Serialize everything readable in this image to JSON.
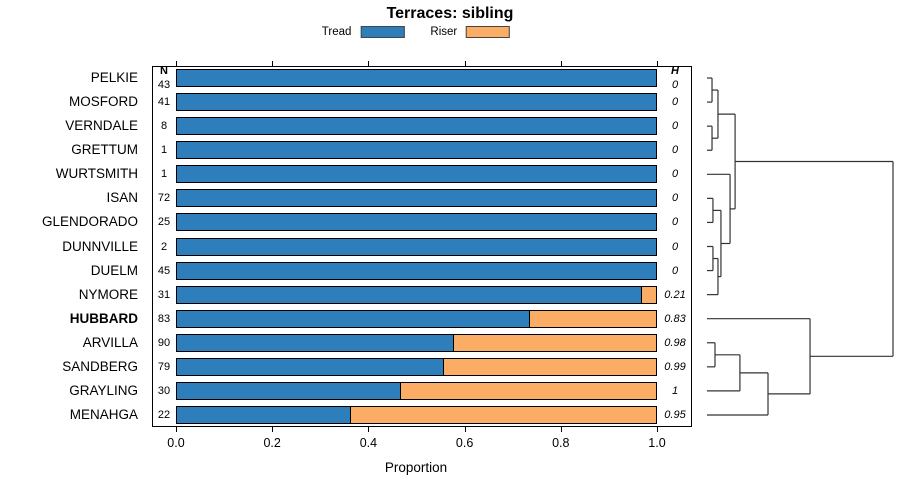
{
  "chart_data": {
    "type": "bar",
    "orientation": "horizontal-stacked",
    "title": "Terraces: sibling",
    "xlabel": "Proportion",
    "xlim": [
      0,
      1
    ],
    "x_ticks": [
      {
        "label": "0.0",
        "v": 0.0
      },
      {
        "label": "0.2",
        "v": 0.2
      },
      {
        "label": "0.4",
        "v": 0.4
      },
      {
        "label": "0.6",
        "v": 0.6
      },
      {
        "label": "0.8",
        "v": 0.8
      },
      {
        "label": "1.0",
        "v": 1.0
      }
    ],
    "legend": [
      {
        "label": "Tread",
        "color": "#2E7EBC"
      },
      {
        "label": "Riser",
        "color": "#FBAD66"
      }
    ],
    "col_headers": {
      "n": "N",
      "h": "H"
    },
    "rows": [
      {
        "name": "PELKIE",
        "n": 43,
        "h": "0",
        "tread": 1.0,
        "riser": 0.0,
        "bold": false
      },
      {
        "name": "MOSFORD",
        "n": 41,
        "h": "0",
        "tread": 1.0,
        "riser": 0.0,
        "bold": false
      },
      {
        "name": "VERNDALE",
        "n": 8,
        "h": "0",
        "tread": 1.0,
        "riser": 0.0,
        "bold": false
      },
      {
        "name": "GRETTUM",
        "n": 1,
        "h": "0",
        "tread": 1.0,
        "riser": 0.0,
        "bold": false
      },
      {
        "name": "WURTSMITH",
        "n": 1,
        "h": "0",
        "tread": 1.0,
        "riser": 0.0,
        "bold": false
      },
      {
        "name": "ISAN",
        "n": 72,
        "h": "0",
        "tread": 1.0,
        "riser": 0.0,
        "bold": false
      },
      {
        "name": "GLENDORADO",
        "n": 25,
        "h": "0",
        "tread": 1.0,
        "riser": 0.0,
        "bold": false
      },
      {
        "name": "DUNNVILLE",
        "n": 2,
        "h": "0",
        "tread": 1.0,
        "riser": 0.0,
        "bold": false
      },
      {
        "name": "DUELM",
        "n": 45,
        "h": "0",
        "tread": 1.0,
        "riser": 0.0,
        "bold": false
      },
      {
        "name": "NYMORE",
        "n": 31,
        "h": "0.21",
        "tread": 0.968,
        "riser": 0.032,
        "bold": false
      },
      {
        "name": "HUBBARD",
        "n": 83,
        "h": "0.83",
        "tread": 0.735,
        "riser": 0.265,
        "bold": true
      },
      {
        "name": "ARVILLA",
        "n": 90,
        "h": "0.98",
        "tread": 0.578,
        "riser": 0.422,
        "bold": false
      },
      {
        "name": "SANDBERG",
        "n": 79,
        "h": "0.99",
        "tread": 0.557,
        "riser": 0.443,
        "bold": false
      },
      {
        "name": "GRAYLING",
        "n": 30,
        "h": "1",
        "tread": 0.467,
        "riser": 0.533,
        "bold": false
      },
      {
        "name": "MENAHGA",
        "n": 22,
        "h": "0.95",
        "tread": 0.364,
        "riser": 0.636,
        "bold": false
      }
    ],
    "dendrogram": {
      "line_color": "#333333",
      "merges": [
        {
          "id": "m1",
          "a": "L0",
          "b": "L1",
          "h": 0.027
        },
        {
          "id": "m2",
          "a": "L2",
          "b": "L3",
          "h": 0.027
        },
        {
          "id": "m3",
          "a": "m1",
          "b": "m2",
          "h": 0.059
        },
        {
          "id": "m4",
          "a": "L5",
          "b": "L6",
          "h": 0.032
        },
        {
          "id": "m5",
          "a": "L7",
          "b": "L8",
          "h": 0.032
        },
        {
          "id": "m6",
          "a": "m5",
          "b": "L9",
          "h": 0.059
        },
        {
          "id": "m7",
          "a": "m4",
          "b": "m6",
          "h": 0.075
        },
        {
          "id": "m8",
          "a": "L4",
          "b": "m7",
          "h": 0.124
        },
        {
          "id": "m9",
          "a": "m3",
          "b": "m8",
          "h": 0.151
        },
        {
          "id": "m10",
          "a": "L11",
          "b": "L12",
          "h": 0.043
        },
        {
          "id": "m11",
          "a": "m10",
          "b": "L13",
          "h": 0.177
        },
        {
          "id": "m12",
          "a": "m11",
          "b": "L14",
          "h": 0.328
        },
        {
          "id": "m13",
          "a": "L10",
          "b": "m12",
          "h": 0.554
        },
        {
          "id": "m14",
          "a": "m9",
          "b": "m13",
          "h": 1.0
        }
      ]
    }
  }
}
